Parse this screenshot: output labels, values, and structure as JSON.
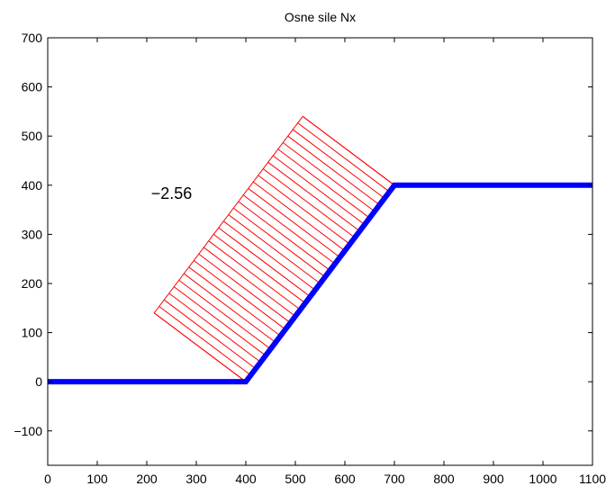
{
  "chart_data": {
    "type": "line",
    "title": "Osne sile Nx",
    "xlabel": "",
    "ylabel": "",
    "xlim": [
      0,
      1100
    ],
    "ylim": [
      -170,
      700
    ],
    "xticks": [
      0,
      100,
      200,
      300,
      400,
      500,
      600,
      700,
      800,
      900,
      1000,
      1100
    ],
    "yticks": [
      -100,
      0,
      100,
      200,
      300,
      400,
      500,
      600,
      700
    ],
    "xtick_labels": [
      "0",
      "100",
      "200",
      "300",
      "400",
      "500",
      "600",
      "700",
      "800",
      "900",
      "1000",
      "1100"
    ],
    "ytick_labels": [
      "−100",
      "0",
      "100",
      "200",
      "300",
      "400",
      "500",
      "600",
      "700"
    ],
    "grid": false,
    "series": [
      {
        "x": [
          0,
          400,
          700,
          1100
        ],
        "y": [
          0,
          0,
          400,
          400
        ],
        "color": "#0000ff"
      }
    ],
    "force_diagram": {
      "member_start": [
        400,
        0
      ],
      "member_end": [
        700,
        400
      ],
      "outer_start": [
        215,
        140
      ],
      "outer_end": [
        515,
        540
      ],
      "hatch_count": 30,
      "color": "#ff0000"
    },
    "annotations": [
      {
        "text": "−2.56",
        "x": 250,
        "y": 385
      }
    ]
  }
}
